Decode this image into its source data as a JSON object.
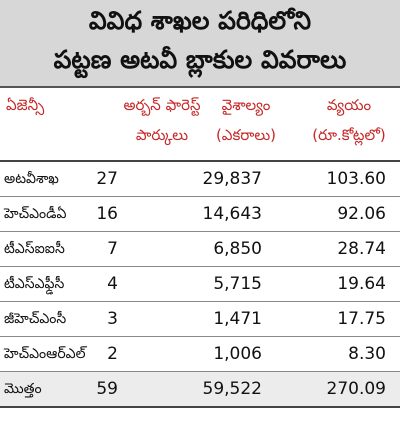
{
  "title": {
    "line1": "వివిధ శాఖల పరిధిలోని",
    "line2": "పట్టణ అటవీ బ్లాకుల వివరాలు"
  },
  "header": {
    "agency": "ఏజెన్సీ",
    "parks_line1": "అర్బన్ ఫారెస్ట్",
    "parks_line2": "పార్కులు",
    "area_line1": "వైశాల్యం",
    "area_line2": "(ఎకరాలు)",
    "cost_line1": "వ్యయం",
    "cost_line2": "(రూ.కోట్లలో)"
  },
  "rows": [
    {
      "name": "అటవీశాఖ",
      "parks": "27",
      "area": "29,837",
      "cost": "103.60"
    },
    {
      "name": "హెచ్ఎండీఏ",
      "parks": "16",
      "area": "14,643",
      "cost": "92.06"
    },
    {
      "name": "టీఎస్ఐఐసీ",
      "parks": "7",
      "area": "6,850",
      "cost": "28.74"
    },
    {
      "name": "టీఎస్ఎఫ్డీసీ",
      "parks": "4",
      "area": "5,715",
      "cost": "19.64"
    },
    {
      "name": "జీహెచ్ఎంసీ",
      "parks": "3",
      "area": "1,471",
      "cost": "17.75"
    },
    {
      "name": "హెచ్ఎంఆర్ఎల్",
      "parks": "2",
      "area": "1,006",
      "cost": "8.30"
    },
    {
      "name": "మొత్తం",
      "parks": "59",
      "area": "59,522",
      "cost": "270.09"
    }
  ],
  "colors": {
    "header_text": "#c62828",
    "title_background": "#d7d7d7"
  }
}
